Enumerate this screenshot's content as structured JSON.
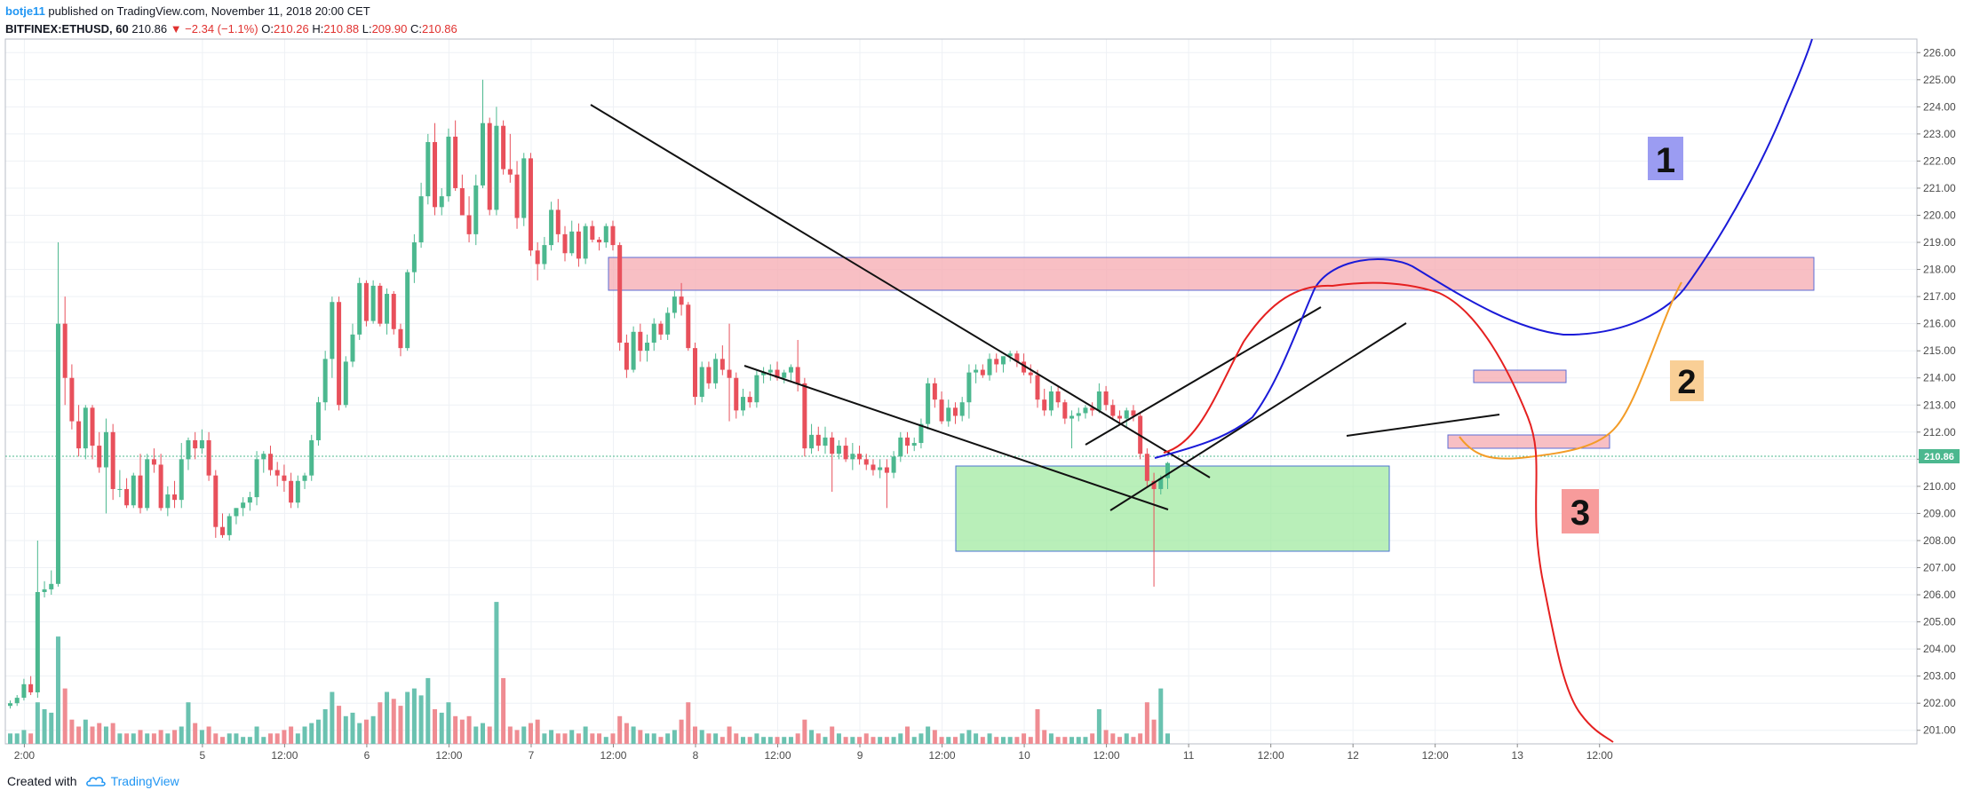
{
  "header": {
    "author": "botje11",
    "published": "published on TradingView.com, November 11, 2018 20:00 CET",
    "symbol": "BITFINEX:ETHUSD, 60",
    "last": "210.86",
    "change": "▼ −2.34 (−1.1%)",
    "o_label": "O:",
    "o": "210.26",
    "h_label": "H:",
    "h": "210.88",
    "l_label": "L:",
    "l": "209.90",
    "c_label": "C:",
    "c": "210.86"
  },
  "footer": {
    "created": "Created with",
    "brand": "TradingView"
  },
  "colors": {
    "up": "#4cb88f",
    "down": "#e8505b",
    "vol_up": "#6ac2b0",
    "vol_down": "#ef8c92",
    "grid": "#eef1f5",
    "price_tag": "#4cb88f"
  },
  "chart_data": {
    "type": "candlestick",
    "price_axis": {
      "min": 200.5,
      "max": 226.5,
      "ticks": [
        "201.00",
        "202.00",
        "203.00",
        "204.00",
        "205.00",
        "206.00",
        "207.00",
        "208.00",
        "209.00",
        "210.00",
        "211.00",
        "212.00",
        "213.00",
        "214.00",
        "215.00",
        "216.00",
        "217.00",
        "218.00",
        "219.00",
        "220.00",
        "221.00",
        "222.00",
        "223.00",
        "224.00",
        "225.00",
        "226.00"
      ]
    },
    "last_price": "210.86",
    "time_axis": {
      "labels": [
        "2:00",
        "5",
        "12:00",
        "6",
        "12:00",
        "7",
        "12:00",
        "8",
        "12:00",
        "9",
        "12:00",
        "10",
        "12:00",
        "11",
        "12:00",
        "12",
        "12:00",
        "13",
        "12:00"
      ],
      "bar_positions": [
        2,
        28,
        40,
        52,
        64,
        76,
        88,
        100,
        112,
        124,
        136,
        148,
        160,
        172,
        184,
        196,
        208,
        220,
        232
      ]
    },
    "candles": [
      [
        201.9,
        202.1,
        201.8,
        202.0
      ],
      [
        202.0,
        202.3,
        201.9,
        202.2
      ],
      [
        202.2,
        202.9,
        202.1,
        202.7
      ],
      [
        202.7,
        203.0,
        202.3,
        202.4
      ],
      [
        202.4,
        208.0,
        202.2,
        206.1
      ],
      [
        206.1,
        206.5,
        205.9,
        206.2
      ],
      [
        206.2,
        206.9,
        206.0,
        206.4
      ],
      [
        206.4,
        219.0,
        206.3,
        216.0
      ],
      [
        216.0,
        217.0,
        213.0,
        214.0
      ],
      [
        214.0,
        214.5,
        212.1,
        212.4
      ],
      [
        212.4,
        213.0,
        211.1,
        211.4
      ],
      [
        211.4,
        213.0,
        211.0,
        212.9
      ],
      [
        212.9,
        213.0,
        211.0,
        211.5
      ],
      [
        211.5,
        212.0,
        210.5,
        210.7
      ],
      [
        210.7,
        212.5,
        209.0,
        212.0
      ],
      [
        212.0,
        212.3,
        209.5,
        209.9
      ],
      [
        209.9,
        210.6,
        209.6,
        209.9
      ],
      [
        209.9,
        210.3,
        209.2,
        209.3
      ],
      [
        209.3,
        210.5,
        209.2,
        210.4
      ],
      [
        210.4,
        211.2,
        209.0,
        209.2
      ],
      [
        209.2,
        211.2,
        209.1,
        211.0
      ],
      [
        211.0,
        211.4,
        210.5,
        210.8
      ],
      [
        210.8,
        211.2,
        209.1,
        209.2
      ],
      [
        209.2,
        210.0,
        208.9,
        209.7
      ],
      [
        209.7,
        210.2,
        209.2,
        209.5
      ],
      [
        209.5,
        211.6,
        209.2,
        211.0
      ],
      [
        211.0,
        211.8,
        210.6,
        211.7
      ],
      [
        211.7,
        212.0,
        211.0,
        211.4
      ],
      [
        211.4,
        212.1,
        211.2,
        211.7
      ],
      [
        211.7,
        212.0,
        210.2,
        210.4
      ],
      [
        210.4,
        210.6,
        208.1,
        208.5
      ],
      [
        208.5,
        209.0,
        208.1,
        208.2
      ],
      [
        208.2,
        209.0,
        208.0,
        208.9
      ],
      [
        208.9,
        209.2,
        208.6,
        209.2
      ],
      [
        209.2,
        209.6,
        208.9,
        209.4
      ],
      [
        209.4,
        209.8,
        209.1,
        209.6
      ],
      [
        209.6,
        211.3,
        209.3,
        211.0
      ],
      [
        211.0,
        211.3,
        210.5,
        211.2
      ],
      [
        211.2,
        211.5,
        210.4,
        210.6
      ],
      [
        210.6,
        210.9,
        210.0,
        210.4
      ],
      [
        210.4,
        210.8,
        209.8,
        210.2
      ],
      [
        210.2,
        210.5,
        209.2,
        209.4
      ],
      [
        209.4,
        210.4,
        209.2,
        210.2
      ],
      [
        210.2,
        210.5,
        209.9,
        210.4
      ],
      [
        210.4,
        211.9,
        210.2,
        211.7
      ],
      [
        211.7,
        213.3,
        211.5,
        213.1
      ],
      [
        213.1,
        215.0,
        212.8,
        214.7
      ],
      [
        214.7,
        217.0,
        214.0,
        216.8
      ],
      [
        216.8,
        217.0,
        212.8,
        213.0
      ],
      [
        213.0,
        214.8,
        212.9,
        214.6
      ],
      [
        214.6,
        216.0,
        214.4,
        215.6
      ],
      [
        215.6,
        217.7,
        215.4,
        217.5
      ],
      [
        217.5,
        217.6,
        215.9,
        216.1
      ],
      [
        216.1,
        217.6,
        216.0,
        217.4
      ],
      [
        217.4,
        217.5,
        215.9,
        216.0
      ],
      [
        216.0,
        217.3,
        215.6,
        217.1
      ],
      [
        217.1,
        217.2,
        215.6,
        215.8
      ],
      [
        215.8,
        216.0,
        214.8,
        215.1
      ],
      [
        215.1,
        218.0,
        215.0,
        217.9
      ],
      [
        217.9,
        219.3,
        217.5,
        219.0
      ],
      [
        219.0,
        221.2,
        218.8,
        220.7
      ],
      [
        220.7,
        223.0,
        220.4,
        222.7
      ],
      [
        222.7,
        223.4,
        220.0,
        220.3
      ],
      [
        220.3,
        221.0,
        220.0,
        220.7
      ],
      [
        220.7,
        223.2,
        220.5,
        222.9
      ],
      [
        222.9,
        223.5,
        220.9,
        221.0
      ],
      [
        221.0,
        221.5,
        220.0,
        220.0
      ],
      [
        220.0,
        220.7,
        219.0,
        219.3
      ],
      [
        219.3,
        221.5,
        218.9,
        221.1
      ],
      [
        221.1,
        225.0,
        221.0,
        223.4
      ],
      [
        223.4,
        223.6,
        220.0,
        220.2
      ],
      [
        220.2,
        224.0,
        220.0,
        223.3
      ],
      [
        223.3,
        223.5,
        221.5,
        221.7
      ],
      [
        221.7,
        223.0,
        221.2,
        221.5
      ],
      [
        221.5,
        222.0,
        219.5,
        219.9
      ],
      [
        219.9,
        222.3,
        219.6,
        222.1
      ],
      [
        222.1,
        222.3,
        218.5,
        218.7
      ],
      [
        218.7,
        219.0,
        217.6,
        218.2
      ],
      [
        218.2,
        219.2,
        218.0,
        218.9
      ],
      [
        218.9,
        220.5,
        218.7,
        220.2
      ],
      [
        220.2,
        220.6,
        219.0,
        219.3
      ],
      [
        219.3,
        219.6,
        218.3,
        218.6
      ],
      [
        218.6,
        219.8,
        218.5,
        219.4
      ],
      [
        219.4,
        219.7,
        218.1,
        218.4
      ],
      [
        218.4,
        219.7,
        218.2,
        219.6
      ],
      [
        219.6,
        219.8,
        219.0,
        219.1
      ],
      [
        219.1,
        219.2,
        218.7,
        219.0
      ],
      [
        219.0,
        219.7,
        218.8,
        219.6
      ],
      [
        219.6,
        219.8,
        218.7,
        218.9
      ],
      [
        218.9,
        219.0,
        215.0,
        215.3
      ],
      [
        215.3,
        215.6,
        214.0,
        214.3
      ],
      [
        214.3,
        215.9,
        214.2,
        215.7
      ],
      [
        215.7,
        216.0,
        214.6,
        215.0
      ],
      [
        215.0,
        215.6,
        214.6,
        215.3
      ],
      [
        215.3,
        216.2,
        215.0,
        216.0
      ],
      [
        216.0,
        216.1,
        215.4,
        215.6
      ],
      [
        215.6,
        216.6,
        215.4,
        216.4
      ],
      [
        216.4,
        217.2,
        216.2,
        217.0
      ],
      [
        217.0,
        217.5,
        216.3,
        216.7
      ],
      [
        216.7,
        216.8,
        215.0,
        215.1
      ],
      [
        215.1,
        215.3,
        213.0,
        213.3
      ],
      [
        213.3,
        214.6,
        213.1,
        214.4
      ],
      [
        214.4,
        214.6,
        213.6,
        213.8
      ],
      [
        213.8,
        214.9,
        213.6,
        214.7
      ],
      [
        214.7,
        215.2,
        214.1,
        214.3
      ],
      [
        214.3,
        216.0,
        212.4,
        214.0
      ],
      [
        214.0,
        214.2,
        212.5,
        212.8
      ],
      [
        212.8,
        213.6,
        212.6,
        213.3
      ],
      [
        213.3,
        213.5,
        212.9,
        213.1
      ],
      [
        213.1,
        214.3,
        212.9,
        214.1
      ],
      [
        214.1,
        214.4,
        213.8,
        214.2
      ],
      [
        214.2,
        214.5,
        213.9,
        214.3
      ],
      [
        214.3,
        214.6,
        213.9,
        214.0
      ],
      [
        214.0,
        214.3,
        213.8,
        214.2
      ],
      [
        214.2,
        214.5,
        213.9,
        214.4
      ],
      [
        214.4,
        215.4,
        213.5,
        213.8
      ],
      [
        213.8,
        214.0,
        211.1,
        211.4
      ],
      [
        211.4,
        212.3,
        211.2,
        211.9
      ],
      [
        211.9,
        212.2,
        211.3,
        211.5
      ],
      [
        211.5,
        212.2,
        211.2,
        211.8
      ],
      [
        211.8,
        212.0,
        209.8,
        211.2
      ],
      [
        211.2,
        211.7,
        211.0,
        211.5
      ],
      [
        211.5,
        211.8,
        210.9,
        211.0
      ],
      [
        211.0,
        211.6,
        210.6,
        211.2
      ],
      [
        211.2,
        211.5,
        210.8,
        211.0
      ],
      [
        211.0,
        211.2,
        210.6,
        210.8
      ],
      [
        210.8,
        211.0,
        210.4,
        210.6
      ],
      [
        210.6,
        211.0,
        210.3,
        210.7
      ],
      [
        210.7,
        211.0,
        209.2,
        210.5
      ],
      [
        210.5,
        211.3,
        210.3,
        211.1
      ],
      [
        211.1,
        212.0,
        210.9,
        211.8
      ],
      [
        211.8,
        212.0,
        211.2,
        211.5
      ],
      [
        211.5,
        211.8,
        211.3,
        211.6
      ],
      [
        211.6,
        212.5,
        211.4,
        212.3
      ],
      [
        212.3,
        214.0,
        212.1,
        213.8
      ],
      [
        213.8,
        214.0,
        212.9,
        213.2
      ],
      [
        213.2,
        213.5,
        212.3,
        212.4
      ],
      [
        212.4,
        213.2,
        212.2,
        212.9
      ],
      [
        212.9,
        213.1,
        212.3,
        212.6
      ],
      [
        212.6,
        213.3,
        212.4,
        213.1
      ],
      [
        213.1,
        214.5,
        212.5,
        214.2
      ],
      [
        214.2,
        214.5,
        213.8,
        214.3
      ],
      [
        214.3,
        214.5,
        214.0,
        214.1
      ],
      [
        214.1,
        214.9,
        213.9,
        214.7
      ],
      [
        214.7,
        214.9,
        214.2,
        214.5
      ],
      [
        214.5,
        214.8,
        214.2,
        214.8
      ],
      [
        214.8,
        215.0,
        214.6,
        214.9
      ],
      [
        214.9,
        215.0,
        214.4,
        214.6
      ],
      [
        214.6,
        214.9,
        214.1,
        214.2
      ],
      [
        214.2,
        214.5,
        213.8,
        214.1
      ],
      [
        214.1,
        214.3,
        212.9,
        213.2
      ],
      [
        213.2,
        213.6,
        212.6,
        212.8
      ],
      [
        212.8,
        213.7,
        212.6,
        213.5
      ],
      [
        213.5,
        213.7,
        212.9,
        213.1
      ],
      [
        213.1,
        213.2,
        212.3,
        212.5
      ],
      [
        212.5,
        212.8,
        211.4,
        212.6
      ],
      [
        212.6,
        212.9,
        212.4,
        212.7
      ],
      [
        212.7,
        213.0,
        212.5,
        212.9
      ],
      [
        212.9,
        213.1,
        212.6,
        212.8
      ],
      [
        212.8,
        213.8,
        212.7,
        213.5
      ],
      [
        213.5,
        213.7,
        212.8,
        213.0
      ],
      [
        213.0,
        213.2,
        212.5,
        212.6
      ],
      [
        212.6,
        212.8,
        212.3,
        212.5
      ],
      [
        212.5,
        212.9,
        212.2,
        212.8
      ],
      [
        212.8,
        213.0,
        212.4,
        212.6
      ],
      [
        212.6,
        212.7,
        211.0,
        211.2
      ],
      [
        211.2,
        211.4,
        210.0,
        210.2
      ],
      [
        210.2,
        210.5,
        206.3,
        209.9
      ],
      [
        209.9,
        210.4,
        209.7,
        210.3
      ],
      [
        210.3,
        210.9,
        209.9,
        210.86
      ]
    ],
    "volumes": [
      0.3,
      0.3,
      0.4,
      0.3,
      1.2,
      1.0,
      0.9,
      3.1,
      1.6,
      0.7,
      0.5,
      0.7,
      0.5,
      0.6,
      0.5,
      0.6,
      0.3,
      0.3,
      0.3,
      0.4,
      0.3,
      0.3,
      0.4,
      0.3,
      0.4,
      0.5,
      1.2,
      0.6,
      0.4,
      0.5,
      0.3,
      0.2,
      0.3,
      0.3,
      0.2,
      0.2,
      0.5,
      0.2,
      0.3,
      0.3,
      0.4,
      0.5,
      0.3,
      0.5,
      0.6,
      0.7,
      1.0,
      1.5,
      1.1,
      0.8,
      0.9,
      0.6,
      0.7,
      0.8,
      1.2,
      1.5,
      1.3,
      1.1,
      1.5,
      1.6,
      1.4,
      1.9,
      1.0,
      0.9,
      1.2,
      0.8,
      0.7,
      0.8,
      0.5,
      0.6,
      0.5,
      4.1,
      1.9,
      0.5,
      0.4,
      0.5,
      0.6,
      0.7,
      0.3,
      0.4,
      0.3,
      0.3,
      0.4,
      0.3,
      0.5,
      0.3,
      0.3,
      0.2,
      0.3,
      0.8,
      0.6,
      0.5,
      0.4,
      0.3,
      0.3,
      0.2,
      0.3,
      0.4,
      0.7,
      1.2,
      0.5,
      0.4,
      0.3,
      0.3,
      0.2,
      0.5,
      0.3,
      0.2,
      0.2,
      0.3,
      0.2,
      0.2,
      0.2,
      0.2,
      0.2,
      0.3,
      0.7,
      0.4,
      0.3,
      0.2,
      0.5,
      0.3,
      0.2,
      0.2,
      0.2,
      0.3,
      0.2,
      0.2,
      0.2,
      0.2,
      0.3,
      0.5,
      0.2,
      0.3,
      0.5,
      0.4,
      0.2,
      0.2,
      0.2,
      0.3,
      0.4,
      0.3,
      0.2,
      0.3,
      0.2,
      0.2,
      0.2,
      0.2,
      0.3,
      0.2,
      1.0,
      0.4,
      0.3,
      0.2,
      0.2,
      0.2,
      0.2,
      0.2,
      0.3,
      1.0,
      0.4,
      0.3,
      0.2,
      0.3,
      0.2,
      0.3,
      1.2,
      0.7,
      1.6,
      0.3
    ]
  },
  "annotations": {
    "label_1": "1",
    "label_2": "2",
    "label_3": "3",
    "zone_colors": {
      "pink": "#f6a9b0",
      "green": "#9be89b",
      "label_1_bg": "#9b9cf2",
      "label_2_bg": "#f9cf96",
      "label_3_bg": "#f79b9b"
    },
    "path_colors": {
      "path1": "#1a1ad8",
      "path2": "#f39c27",
      "path3": "#e52020"
    }
  }
}
